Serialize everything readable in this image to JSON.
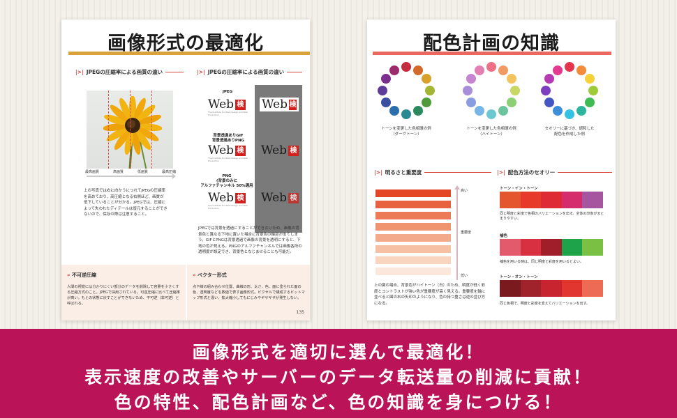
{
  "left_page": {
    "title": "画像形式の最適化",
    "section1_heading": "JPEGの圧縮率による画質の違い",
    "section2_heading": "JPEGの圧縮率による画質の違い",
    "quality_labels": [
      "最高画質",
      "高画質",
      "低画質",
      "最高圧縮"
    ],
    "jpeg_text": "上の写真では右に向かうにつれてJPEGの圧縮率を高めており、高圧縮となる右側ほど、画質が低下していることが分かる。JPEGでは、圧縮によって失われたディテールは復元することができないので、保存の際は注意すること。",
    "formats": {
      "jpeg": "JPEG",
      "gif_png": "背景透過ありGIF\n背景透過ありPNG",
      "png_alpha": "PNG\n(背景のみに\nアルファチャンネル 50%適用"
    },
    "logo_text": "Web",
    "logo_kanji": "検",
    "logo_tagline": "The Institute for Web Design and Web Production",
    "format_text": "JPEGでは背景を透過にすることができないため、画像の背景色と異なる下地に置いた場合に背景色の輪郭が出てしまう。GIFとPNGは背景透過で画像の背景を透明にすると、下地の色が見える。PNGのアルファチャンネルでは画像各所の透明度が設定でき、背景色となじませることも可能だ。",
    "box1_heading": "不可逆圧縮",
    "box1_text": "人間の視覚には分かりにくい部分のデータを削除して容量を小さくする圧縮方式のこと。JPEGで採用されている。可逆圧縮に比べて圧縮率が高い。もとの状態に戻すことができないため、不可逆（非可逆）と呼ばれる。",
    "box2_heading": "ベクター形式",
    "box2_text": "点や線の組み合わせ位置、曲線の形、太さ、色、面に塗られた面の色、透明度などを数値で表す画像形式。ピクセルで構成するビットマップ形式と違い、拡大縮小してもにじみやギザギザが発生しない。",
    "page_number": "135"
  },
  "right_page": {
    "title": "配色計画の知識",
    "wheel_captions": [
      "トーンを変更した色相環の例\n（ダークトーン）",
      "トーンを変更した色相環の例\n（ハイトーン）",
      "セオリーに基づき、調和した\n配色を作成した例"
    ],
    "brightness_heading": "明るさと重要度",
    "brightness_high": "高い",
    "brightness_importance": "重要度",
    "brightness_low": "低い",
    "brightness_text": "上の図の場合、背景色がハイトーン（白）のため、明度が低く彩度とコントラストが強い色が重要度が高く見える。重要度を軸に並べると図の右の矢印のようになり、色の持つ重さは逆の並び方になる。",
    "theory_heading": "配色方法のセオリー",
    "theory1_label": "トーン・イン・トーン",
    "theory1_desc": "同じ明度と彩度で色相のバリエーションを出す。全体の印象がまとまりやすい。",
    "theory2_label": "補色",
    "theory2_desc": "補色を用いる時は、同じ明度と彩度を用いるとよい。",
    "theory3_label": "トーン・オン・トーン",
    "theory3_desc": "同じ色相で、明度と彩度を変えてバリエーションを出す。"
  },
  "banner": {
    "line1": "画像形式を適切に選んで最適化！",
    "line2": "表示速度の改善やサーバーのデータ転送量の削減に貢献！",
    "line3": "色の特性、配色計画など、色の知識を身につける！"
  },
  "colors": {
    "gold_rule": "#d9a23d",
    "coral_rule": "#ea6860",
    "banner_bg": "#ba1357",
    "logo_red": "#d3201c",
    "wheel_dark": [
      "#c62c3e",
      "#d46a2a",
      "#d8a12b",
      "#a4b532",
      "#4f9a3a",
      "#2d8a5e",
      "#2a8a93",
      "#2c6fae",
      "#3b4fa1",
      "#5d3d99",
      "#7c2f8e",
      "#9c2b6e"
    ],
    "wheel_high": [
      "#ef6f86",
      "#f29a64",
      "#f3c35d",
      "#c8d766",
      "#8dcf75",
      "#6cc49e",
      "#6cc8d0",
      "#78b6e8",
      "#8a9de0",
      "#a88ed8",
      "#c784d0",
      "#e47fb3"
    ],
    "wheel_harmony": [
      "#e8334c",
      "#f28b3a",
      "#f7d13a",
      "#9fcb3a",
      "#3fbb51",
      "#2db59e",
      "#35c1e1",
      "#3e8fdb",
      "#4456c4",
      "#7c3fbf",
      "#b53ab3",
      "#e23a8c"
    ],
    "brightness_bars": [
      "#e34728",
      "#e8623f",
      "#ec7a57",
      "#f0936f",
      "#f3aa8a",
      "#f6c0a5",
      "#f9d5c0",
      "#fbe7dc"
    ],
    "theory1": [
      "#e4572e",
      "#e83a2a",
      "#de2a35",
      "#d42c6c",
      "#a5569e"
    ],
    "theory2": [
      "#e35a6c",
      "#d83040",
      "#a01e2a",
      "#1fa34a",
      "#7ac143"
    ],
    "theory3": [
      "#7a1a1e",
      "#a0222a",
      "#c82430",
      "#e1352f",
      "#ed6a55"
    ]
  }
}
